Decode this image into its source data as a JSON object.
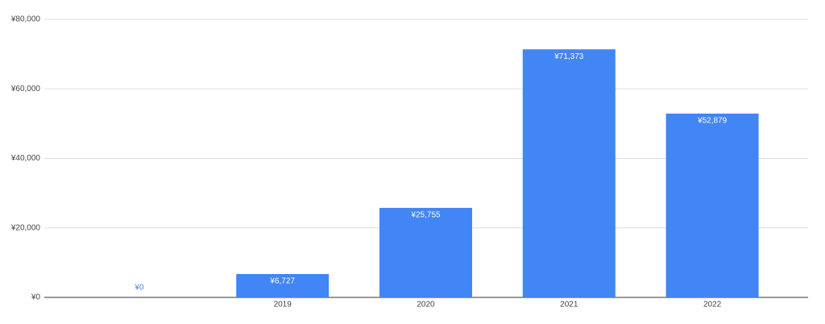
{
  "chart_data": {
    "type": "bar",
    "categories": [
      null,
      "2019",
      "2020",
      "2021",
      "2022"
    ],
    "values": [
      0,
      6727,
      25755,
      71373,
      52879
    ],
    "value_labels": [
      "¥0",
      "¥6,727",
      "¥25,755",
      "¥71,373",
      "¥52,879"
    ],
    "color": "#4285f4",
    "ylim": [
      0,
      80000
    ],
    "yticks": [
      {
        "value": 0,
        "label": "¥0"
      },
      {
        "value": 20000,
        "label": "¥20,000"
      },
      {
        "value": 40000,
        "label": "¥40,000"
      },
      {
        "value": 60000,
        "label": "¥60,000"
      },
      {
        "value": 80000,
        "label": "¥80,000"
      }
    ],
    "grid": true
  }
}
